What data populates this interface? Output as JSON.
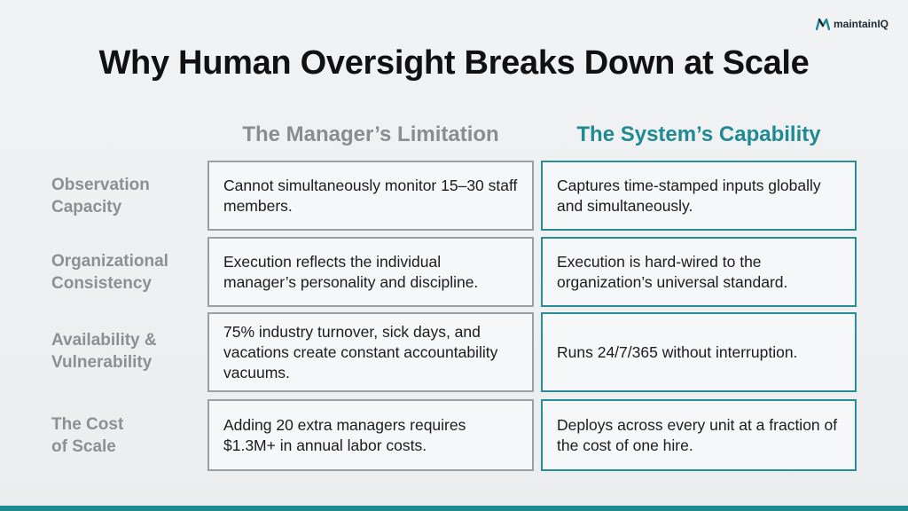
{
  "brand": {
    "name": "maintainIQ",
    "logo_icon": "maintainiq-logo-icon",
    "accent_color": "#1f8a92"
  },
  "title": "Why Human Oversight Breaks Down at Scale",
  "columns": {
    "left_header": "The Manager’s Limitation",
    "right_header": "The System’s Capability"
  },
  "rows": [
    {
      "label_line1": "Observation",
      "label_line2": "Capacity",
      "limitation": "Cannot simultaneously monitor 15–30 staff members.",
      "capability": "Captures time-stamped inputs globally and simultaneously."
    },
    {
      "label_line1": "Organizational",
      "label_line2": "Consistency",
      "limitation": "Execution reflects the individual manager’s personality and discipline.",
      "capability": "Execution is hard-wired to the organization’s universal standard."
    },
    {
      "label_line1": "Availability &",
      "label_line2": "Vulnerability",
      "limitation": "75% industry turnover, sick days, and vacations create constant accountability vacuums.",
      "capability": "Runs 24/7/365 without interruption."
    },
    {
      "label_line1": "The Cost",
      "label_line2": "of Scale",
      "limitation": "Adding 20 extra managers requires $1.3M+ in annual labor costs.",
      "capability": "Deploys across every unit at a fraction of the cost of one hire."
    }
  ]
}
